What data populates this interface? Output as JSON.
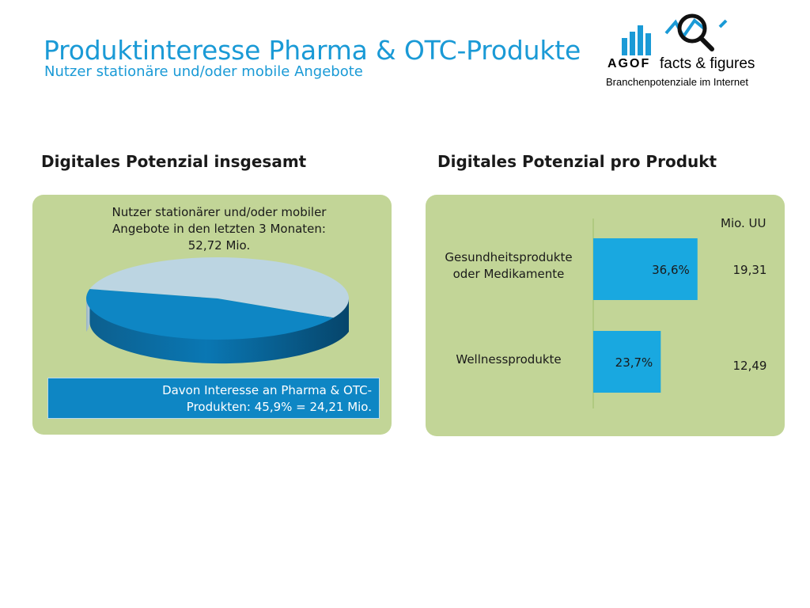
{
  "header": {
    "title": "Produktinteresse Pharma & OTC-Produkte",
    "subtitle": "Nutzer stationäre und/oder mobile Angebote"
  },
  "logo": {
    "brand": "AGOF",
    "tagline_main": "facts & figures",
    "tagline_sub": "Branchenpotenziale im Internet"
  },
  "left_section": {
    "title": "Digitales Potenzial insgesamt",
    "caption_lines": [
      "Nutzer stationärer und/oder mobiler",
      "Angebote in den letzten 3 Monaten:",
      "52,72 Mio."
    ],
    "highlight_lines": [
      "Davon Interesse an Pharma & OTC-",
      "Produkten: 45,9% = 24,21 Mio."
    ]
  },
  "right_section": {
    "title": "Digitales Potenzial pro Produkt",
    "unit_label": "Mio. UU"
  },
  "colors": {
    "title_blue": "#1a9ad6",
    "panel_green": "#c2d597",
    "pie_highlight": "#0e86c4",
    "pie_rest": "#bcd5e2",
    "bar_blue": "#19a8e0"
  },
  "chart_data": [
    {
      "type": "pie",
      "slices": [
        {
          "label": "Davon Interesse an Pharma & OTC-Produkten",
          "value": 45.9
        },
        {
          "label": "",
          "value": 54.1
        }
      ]
    },
    {
      "type": "bar",
      "orientation": "horizontal",
      "categories": [
        "Gesundheitsprodukte oder Medikamente",
        "Wellnessprodukte"
      ],
      "category_lines": [
        [
          "Gesundheitsprodukte",
          "oder Medikamente"
        ],
        [
          "Wellnessprodukte"
        ]
      ],
      "values": [
        36.6,
        23.7
      ],
      "value_labels": [
        "36,6%",
        "23,7%"
      ],
      "mio_uu": [
        "19,31",
        "12,49"
      ]
    }
  ]
}
